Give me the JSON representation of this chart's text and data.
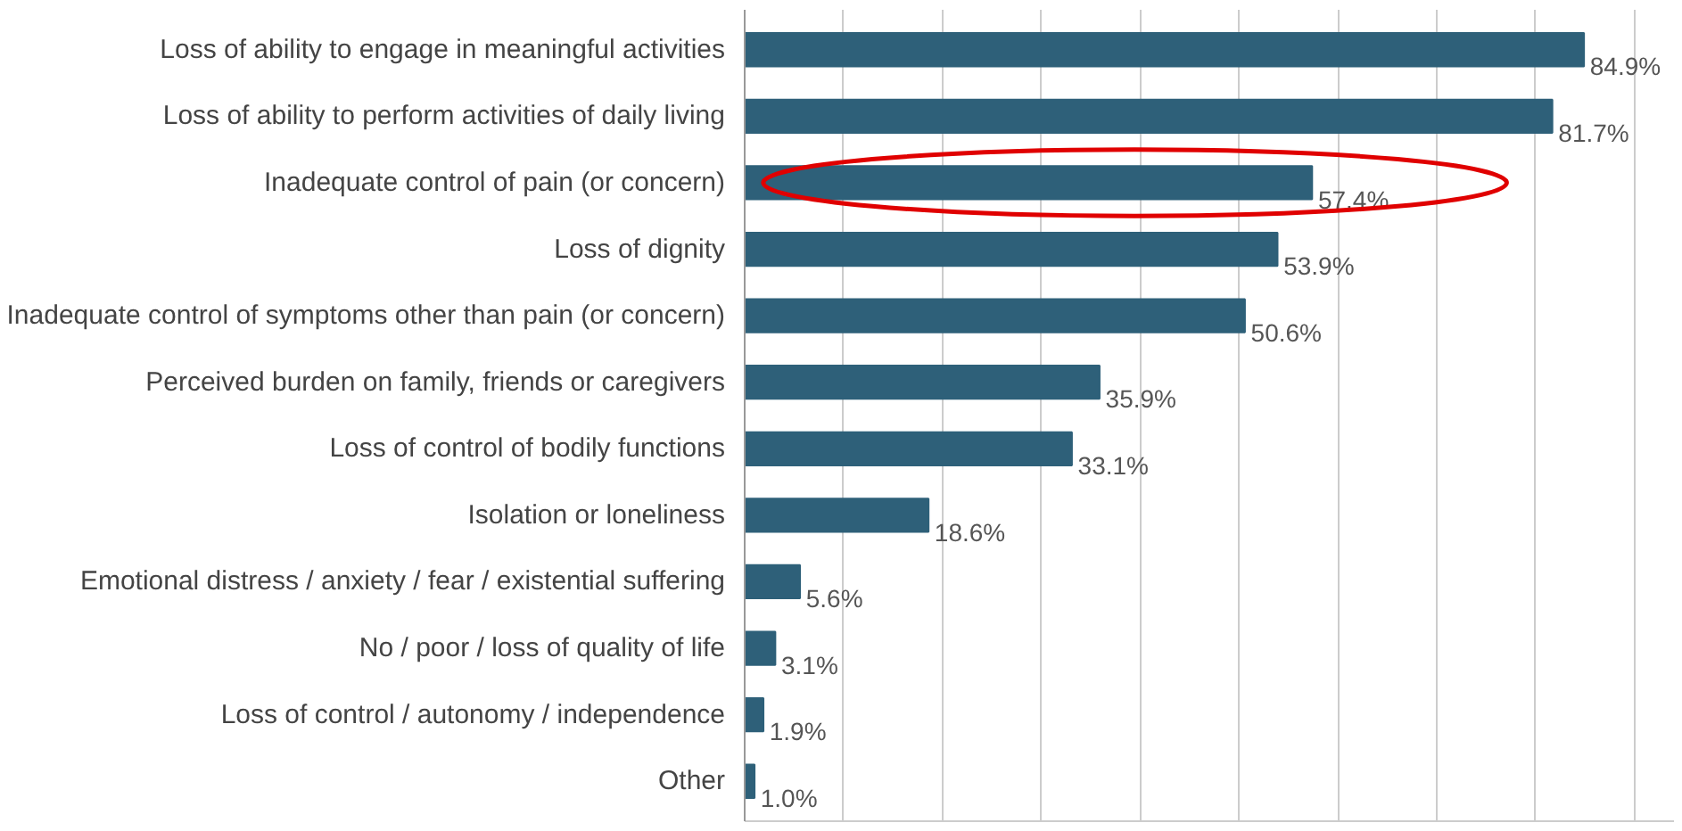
{
  "chart_data": {
    "type": "bar",
    "orientation": "horizontal",
    "categories": [
      "Loss of ability to engage in meaningful activities",
      "Loss of ability to perform activities of daily living",
      "Inadequate control of pain (or concern)",
      "Loss of dignity",
      "Inadequate control of symptoms other than pain (or concern)",
      "Perceived burden on family, friends or caregivers",
      "Loss of control of bodily functions",
      "Isolation or loneliness",
      "Emotional distress / anxiety / fear / existential suffering",
      "No / poor / loss of quality of life",
      "Loss of control / autonomy / independence",
      "Other"
    ],
    "values": [
      84.9,
      81.7,
      57.4,
      53.9,
      50.6,
      35.9,
      33.1,
      18.6,
      5.6,
      3.1,
      1.9,
      1.0
    ],
    "value_labels": [
      "84.9%",
      "81.7%",
      "57.4%",
      "53.9%",
      "50.6%",
      "35.9%",
      "33.1%",
      "18.6%",
      "5.6%",
      "3.1%",
      "1.9%",
      "1.0%"
    ],
    "color": "#2e6079",
    "xlim": [
      0,
      94
    ],
    "xticks": [
      {
        "value": 0,
        "label": null
      },
      {
        "value": 10,
        "label": null
      },
      {
        "value": 20,
        "label": null
      },
      {
        "value": 30,
        "label": null
      },
      {
        "value": 40,
        "label": null
      },
      {
        "value": 50,
        "label": null
      },
      {
        "value": 60,
        "label": null
      },
      {
        "value": 70,
        "label": null
      },
      {
        "value": 80,
        "label": null
      },
      {
        "value": 90,
        "label": null
      }
    ],
    "grid": "x",
    "tick_labels": "y"
  }
}
